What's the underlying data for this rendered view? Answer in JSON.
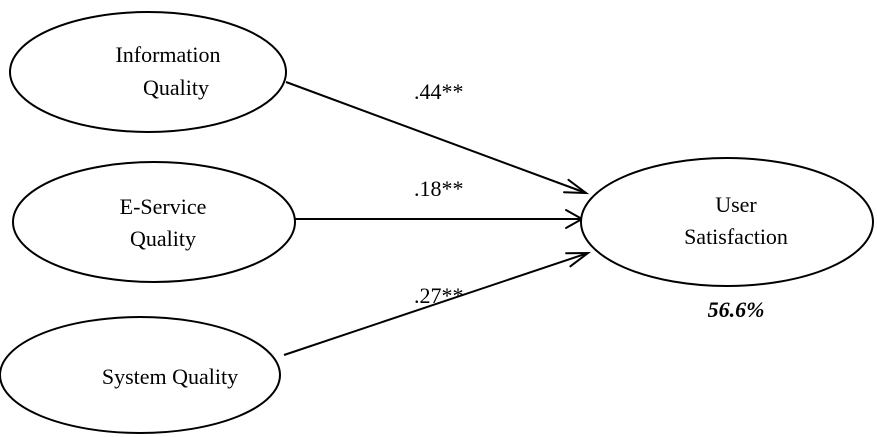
{
  "nodes": {
    "information_quality": {
      "lines": [
        "Information",
        "Quality"
      ]
    },
    "eservice_quality": {
      "lines": [
        "E-Service",
        "Quality"
      ]
    },
    "system_quality": {
      "lines": [
        "System Quality"
      ]
    },
    "user_satisfaction": {
      "lines": [
        "User",
        "Satisfaction"
      ]
    }
  },
  "edges": {
    "information_to_satisfaction": {
      "label": ".44**"
    },
    "eservice_to_satisfaction": {
      "label": ".18**"
    },
    "system_to_satisfaction": {
      "label": ".27**"
    }
  },
  "explained_variance": "56.6%"
}
